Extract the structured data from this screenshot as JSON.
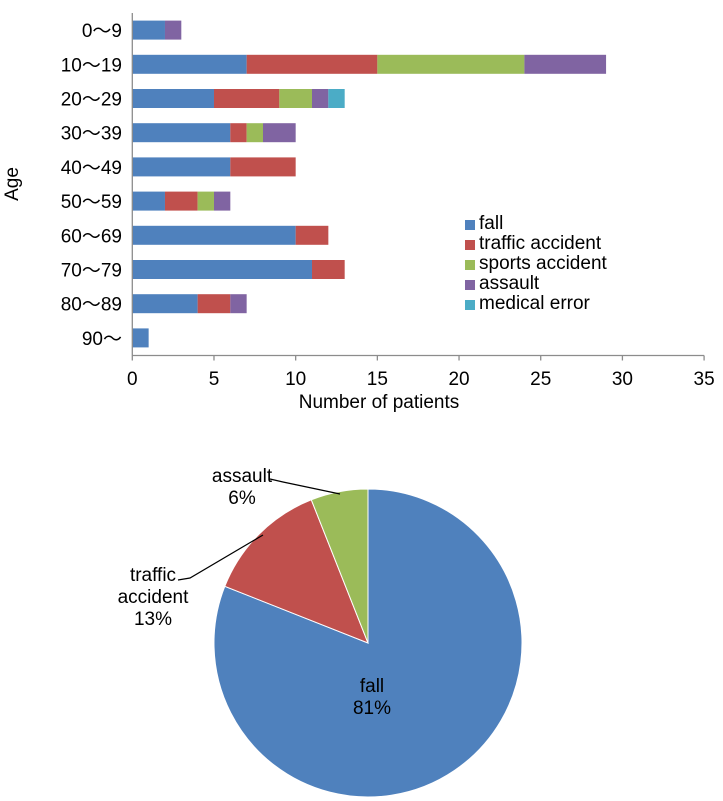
{
  "chart_data": [
    {
      "type": "bar",
      "orientation": "horizontal",
      "stacked": true,
      "title": "",
      "xlabel": "Number of patients",
      "ylabel": "Age",
      "categories": [
        "0〜9",
        "10〜19",
        "20〜29",
        "30〜39",
        "40〜49",
        "50〜59",
        "60〜69",
        "70〜79",
        "80〜89",
        "90〜"
      ],
      "series": [
        {
          "name": "fall",
          "color": "#4F81BD",
          "values": [
            2,
            7,
            5,
            6,
            6,
            2,
            10,
            11,
            4,
            1
          ]
        },
        {
          "name": "traffic accident",
          "color": "#C0504D",
          "values": [
            0,
            8,
            4,
            1,
            4,
            2,
            2,
            2,
            2,
            0
          ]
        },
        {
          "name": "sports accident",
          "color": "#9BBB59",
          "values": [
            0,
            9,
            2,
            1,
            0,
            1,
            0,
            0,
            0,
            0
          ]
        },
        {
          "name": "assault",
          "color": "#8064A2",
          "values": [
            1,
            5,
            1,
            2,
            0,
            1,
            0,
            0,
            1,
            0
          ]
        },
        {
          "name": "medical error",
          "color": "#4BACC6",
          "values": [
            0,
            0,
            1,
            0,
            0,
            0,
            0,
            0,
            0,
            0
          ]
        }
      ],
      "totals": [
        3,
        29,
        13,
        10,
        10,
        6,
        12,
        13,
        7,
        1
      ],
      "xlim": [
        0,
        35
      ],
      "xticks": [
        0,
        5,
        10,
        15,
        20,
        25,
        30,
        35
      ],
      "grid": false,
      "legend_position": "middle-right",
      "axis_color": "#8C8C8C"
    },
    {
      "type": "pie",
      "start_angle_deg": 0,
      "direction": "clockwise",
      "slices": [
        {
          "label": "fall",
          "pct": 81,
          "color": "#4F81BD",
          "label_lines": [
            "fall",
            "81%"
          ],
          "label_placement": "inside"
        },
        {
          "label": "traffic accident",
          "pct": 13,
          "color": "#C0504D",
          "label_lines": [
            "traffic",
            "accident",
            "13%"
          ],
          "label_placement": "outside"
        },
        {
          "label": "assault",
          "pct": 6,
          "color": "#9BBB59",
          "label_lines": [
            "assault",
            "6%"
          ],
          "label_placement": "outside"
        }
      ]
    }
  ]
}
